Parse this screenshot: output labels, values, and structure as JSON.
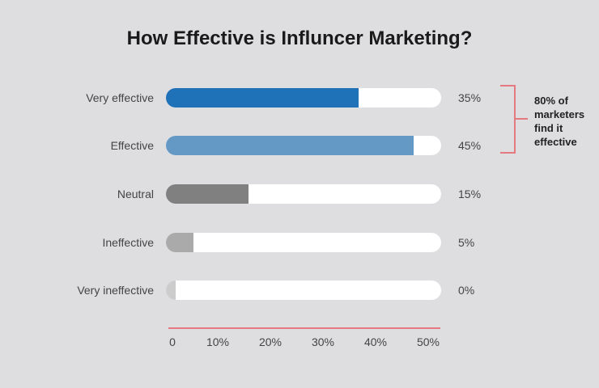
{
  "chart_data": {
    "type": "bar",
    "orientation": "horizontal",
    "title": "How Effective is Influncer Marketing?",
    "categories": [
      "Very effective",
      "Effective",
      "Neutral",
      "Ineffective",
      "Very ineffective"
    ],
    "values": [
      35,
      45,
      15,
      5,
      0
    ],
    "value_labels": [
      "35%",
      "45%",
      "15%",
      "5%",
      "0%"
    ],
    "colors": [
      "#1f72b8",
      "#6499c6",
      "#808080",
      "#aaaaaa",
      "#cccccc"
    ],
    "track_color": "#ffffff",
    "axis_color": "#e47a80",
    "xlim": [
      0,
      50
    ],
    "xticks": [
      0,
      10,
      20,
      30,
      40,
      50
    ],
    "xtick_labels": [
      "0",
      "10%",
      "20%",
      "30%",
      "40%",
      "50%"
    ],
    "grid": false,
    "annotation": {
      "text": "80% of marketers find it effective",
      "lines": [
        "80% of",
        "marketers",
        "find it",
        "effective"
      ],
      "spans_categories": [
        "Very effective",
        "Effective"
      ],
      "bracket_color": "#e47a80"
    }
  }
}
